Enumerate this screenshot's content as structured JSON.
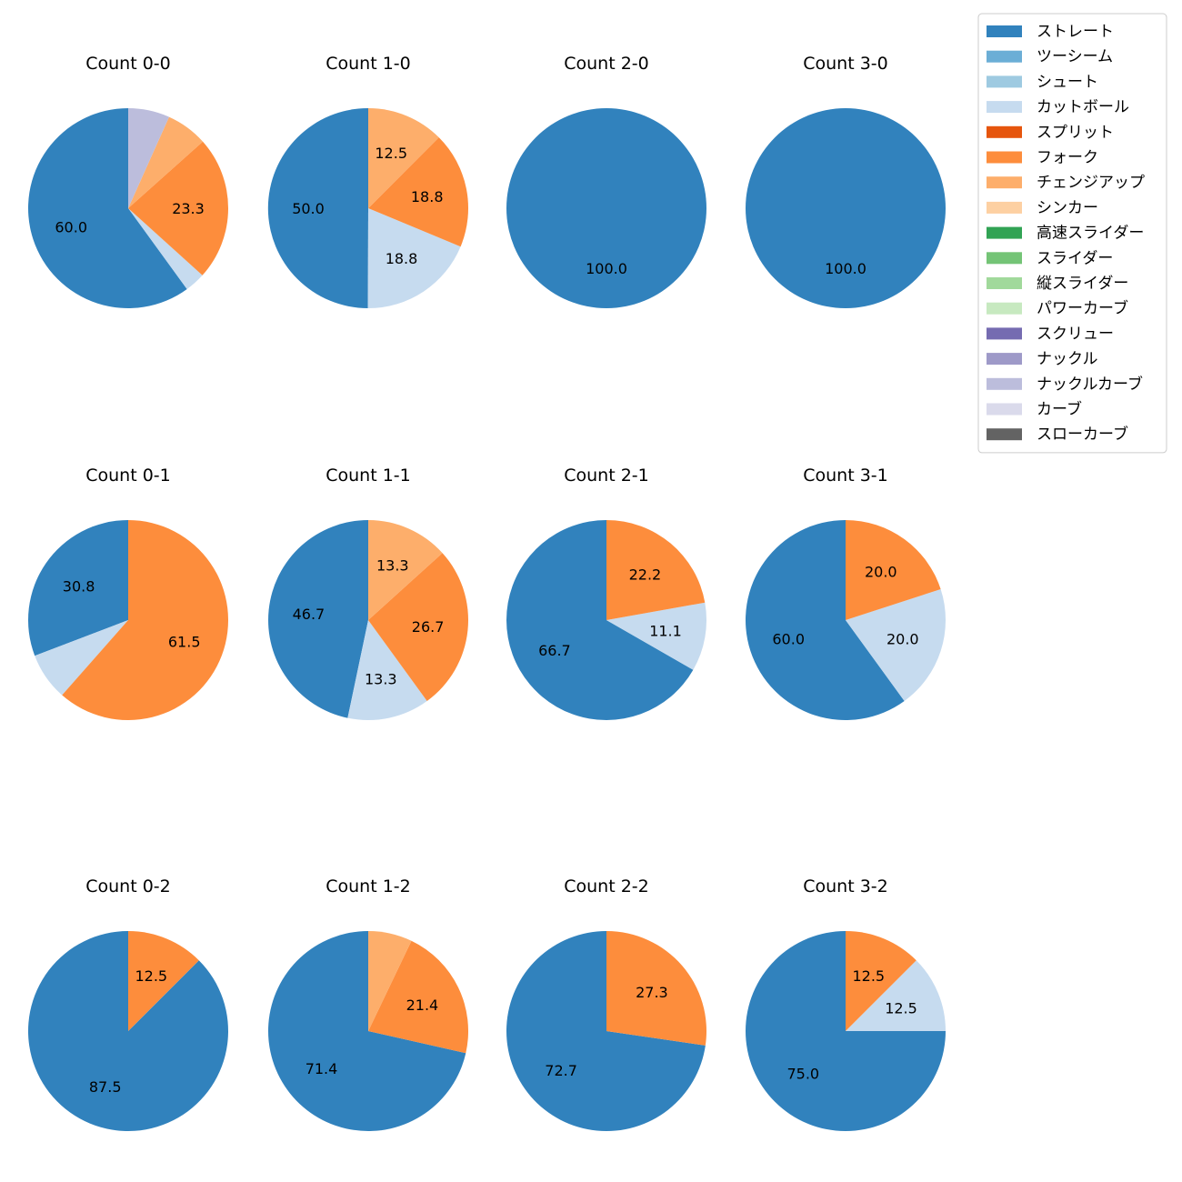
{
  "chart_data": {
    "type": "pie",
    "start_angle": "90deg, counter-clockwise",
    "legend_placement": "top-right",
    "legend": [
      {
        "name": "ストレート",
        "color": "#3182bd"
      },
      {
        "name": "ツーシーム",
        "color": "#6baed6"
      },
      {
        "name": "シュート",
        "color": "#9ecae1"
      },
      {
        "name": "カットボール",
        "color": "#c6dbef"
      },
      {
        "name": "スプリット",
        "color": "#e6550d"
      },
      {
        "name": "フォーク",
        "color": "#fd8d3c"
      },
      {
        "name": "チェンジアップ",
        "color": "#fdae6b"
      },
      {
        "name": "シンカー",
        "color": "#fdd0a2"
      },
      {
        "name": "高速スライダー",
        "color": "#31a354"
      },
      {
        "name": "スライダー",
        "color": "#74c476"
      },
      {
        "name": "縦スライダー",
        "color": "#a1d99b"
      },
      {
        "name": "パワーカーブ",
        "color": "#c7e9c0"
      },
      {
        "name": "スクリュー",
        "color": "#756bb1"
      },
      {
        "name": "ナックル",
        "color": "#9e9ac8"
      },
      {
        "name": "ナックルカーブ",
        "color": "#bcbddc"
      },
      {
        "name": "カーブ",
        "color": "#dadaeb"
      },
      {
        "name": "スローカーブ",
        "color": "#636363"
      }
    ],
    "charts": [
      {
        "title": "Count 0-0",
        "slices": [
          {
            "pitch": "ストレート",
            "value": 60.0,
            "label": "60.0"
          },
          {
            "pitch": "カットボール",
            "value": 3.3,
            "label": ""
          },
          {
            "pitch": "フォーク",
            "value": 23.3,
            "label": "23.3"
          },
          {
            "pitch": "チェンジアップ",
            "value": 6.7,
            "label": ""
          },
          {
            "pitch": "ナックルカーブ",
            "value": 6.7,
            "label": ""
          }
        ]
      },
      {
        "title": "Count 1-0",
        "slices": [
          {
            "pitch": "ストレート",
            "value": 50.0,
            "label": "50.0"
          },
          {
            "pitch": "カットボール",
            "value": 18.8,
            "label": "18.8"
          },
          {
            "pitch": "フォーク",
            "value": 18.8,
            "label": "18.8"
          },
          {
            "pitch": "チェンジアップ",
            "value": 12.5,
            "label": "12.5"
          }
        ]
      },
      {
        "title": "Count 2-0",
        "slices": [
          {
            "pitch": "ストレート",
            "value": 100.0,
            "label": "100.0"
          }
        ]
      },
      {
        "title": "Count 3-0",
        "slices": [
          {
            "pitch": "ストレート",
            "value": 100.0,
            "label": "100.0"
          }
        ]
      },
      {
        "title": "Count 0-1",
        "slices": [
          {
            "pitch": "ストレート",
            "value": 30.8,
            "label": "30.8"
          },
          {
            "pitch": "カットボール",
            "value": 7.7,
            "label": ""
          },
          {
            "pitch": "フォーク",
            "value": 61.5,
            "label": "61.5"
          }
        ]
      },
      {
        "title": "Count 1-1",
        "slices": [
          {
            "pitch": "ストレート",
            "value": 46.7,
            "label": "46.7"
          },
          {
            "pitch": "カットボール",
            "value": 13.3,
            "label": "13.3"
          },
          {
            "pitch": "フォーク",
            "value": 26.7,
            "label": "26.7"
          },
          {
            "pitch": "チェンジアップ",
            "value": 13.3,
            "label": "13.3"
          }
        ]
      },
      {
        "title": "Count 2-1",
        "slices": [
          {
            "pitch": "ストレート",
            "value": 66.7,
            "label": "66.7"
          },
          {
            "pitch": "カットボール",
            "value": 11.1,
            "label": "11.1"
          },
          {
            "pitch": "フォーク",
            "value": 22.2,
            "label": "22.2"
          }
        ]
      },
      {
        "title": "Count 3-1",
        "slices": [
          {
            "pitch": "ストレート",
            "value": 60.0,
            "label": "60.0"
          },
          {
            "pitch": "カットボール",
            "value": 20.0,
            "label": "20.0"
          },
          {
            "pitch": "フォーク",
            "value": 20.0,
            "label": "20.0"
          }
        ]
      },
      {
        "title": "Count 0-2",
        "slices": [
          {
            "pitch": "ストレート",
            "value": 87.5,
            "label": "87.5"
          },
          {
            "pitch": "フォーク",
            "value": 12.5,
            "label": "12.5"
          }
        ]
      },
      {
        "title": "Count 1-2",
        "slices": [
          {
            "pitch": "ストレート",
            "value": 71.4,
            "label": "71.4"
          },
          {
            "pitch": "フォーク",
            "value": 21.4,
            "label": "21.4"
          },
          {
            "pitch": "チェンジアップ",
            "value": 7.1,
            "label": ""
          }
        ]
      },
      {
        "title": "Count 2-2",
        "slices": [
          {
            "pitch": "ストレート",
            "value": 72.7,
            "label": "72.7"
          },
          {
            "pitch": "フォーク",
            "value": 27.3,
            "label": "27.3"
          }
        ]
      },
      {
        "title": "Count 3-2",
        "slices": [
          {
            "pitch": "ストレート",
            "value": 75.0,
            "label": "75.0"
          },
          {
            "pitch": "カットボール",
            "value": 12.5,
            "label": "12.5"
          },
          {
            "pitch": "フォーク",
            "value": 12.5,
            "label": "12.5"
          }
        ]
      }
    ]
  }
}
